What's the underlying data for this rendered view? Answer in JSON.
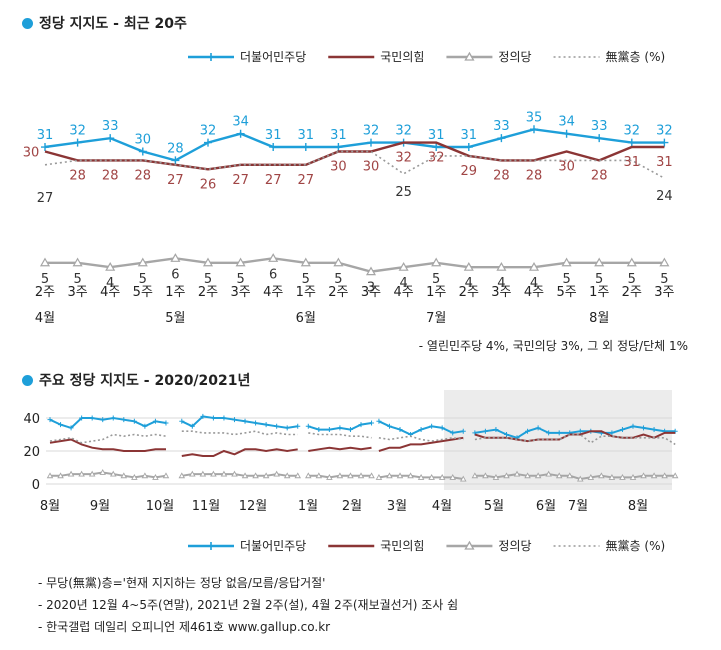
{
  "chart1": {
    "title": "정당 지지도 - 최근 20주",
    "footnote": "- 열린민주당 4%, 국민의당 3%, 그 외 정당/단체 1%",
    "legend": [
      {
        "name": "더불어민주당",
        "color": "#1e9fd9",
        "style": "marker-plus"
      },
      {
        "name": "국민의힘",
        "color": "#8b3535",
        "style": "solid"
      },
      {
        "name": "정의당",
        "color": "#a6a6a6",
        "style": "marker-triangle"
      },
      {
        "name": "無黨층 (%)",
        "color": "#999999",
        "style": "dotted"
      }
    ],
    "week_labels": [
      "2주",
      "3주",
      "4주",
      "5주",
      "1주",
      "2주",
      "3주",
      "4주",
      "1주",
      "2주",
      "3주",
      "4주",
      "1주",
      "2주",
      "3주",
      "4주",
      "5주",
      "1주",
      "2주",
      "3주"
    ],
    "month_labels": [
      {
        "label": "4월",
        "index": 0
      },
      {
        "label": "5월",
        "index": 4
      },
      {
        "label": "6월",
        "index": 8
      },
      {
        "label": "7월",
        "index": 12
      },
      {
        "label": "8월",
        "index": 17
      }
    ]
  },
  "chart2": {
    "title": "주요 정당 지지도 - 2020/2021년",
    "y_ticks": [
      "0",
      "20",
      "40"
    ],
    "month_labels": [
      "8월",
      "9월",
      "10월",
      "11월",
      "12월",
      "1월",
      "2월",
      "3월",
      "4월",
      "5월",
      "6월",
      "7월",
      "8월"
    ],
    "legend": [
      {
        "name": "더불어민주당",
        "color": "#1e9fd9",
        "style": "marker-plus"
      },
      {
        "name": "국민의힘",
        "color": "#8b3535",
        "style": "solid"
      },
      {
        "name": "정의당",
        "color": "#a6a6a6",
        "style": "marker-triangle"
      },
      {
        "name": "無黨층 (%)",
        "color": "#999999",
        "style": "dotted"
      }
    ]
  },
  "notes": [
    "- 무당(無黨)층='현재 지지하는 정당 없음/모름/응답거절'",
    "- 2020년 12월 4~5주(연말), 2021년 2월 2주(설), 4월 2주(재보궐선거) 조사 쉼",
    "- 한국갤럽 데일리 오피니언 제461호 www.gallup.co.kr"
  ],
  "chart_data": [
    {
      "type": "line",
      "title": "정당 지지도 - 최근 20주",
      "categories": [
        "4월 2주",
        "4월 3주",
        "4월 4주",
        "4월 5주",
        "5월 1주",
        "5월 2주",
        "5월 3주",
        "5월 4주",
        "6월 1주",
        "6월 2주",
        "6월 3주",
        "6월 4주",
        "7월 1주",
        "7월 2주",
        "7월 3주",
        "7월 4주",
        "7월 5주",
        "8월 1주",
        "8월 2주",
        "8월 3주"
      ],
      "series": [
        {
          "name": "더불어민주당",
          "color": "#1e9fd9",
          "values": [
            31,
            32,
            33,
            30,
            28,
            32,
            34,
            31,
            31,
            31,
            32,
            32,
            31,
            31,
            33,
            35,
            34,
            33,
            32,
            32
          ]
        },
        {
          "name": "국민의힘",
          "color": "#8b3535",
          "values": [
            30,
            28,
            28,
            28,
            27,
            26,
            27,
            27,
            27,
            30,
            30,
            32,
            32,
            29,
            28,
            28,
            30,
            28,
            31,
            31
          ]
        },
        {
          "name": "정의당",
          "color": "#a6a6a6",
          "values": [
            5,
            5,
            4,
            5,
            6,
            5,
            5,
            6,
            5,
            5,
            3,
            4,
            5,
            4,
            4,
            4,
            5,
            5,
            5,
            5
          ]
        },
        {
          "name": "無黨층 (%)",
          "color": "#999999",
          "values": [
            27,
            28,
            28,
            28,
            27,
            26,
            27,
            27,
            27,
            30,
            30,
            25,
            29,
            29,
            28,
            28,
            28,
            28,
            28,
            24
          ]
        }
      ],
      "legend_position": "top",
      "grid": false
    },
    {
      "type": "line",
      "title": "주요 정당 지지도 - 2020/2021년",
      "x_labels": [
        "8월",
        "9월",
        "10월",
        "11월",
        "12월",
        "1월",
        "2월",
        "3월",
        "4월",
        "5월",
        "6월",
        "7월",
        "8월"
      ],
      "ylim": [
        0,
        40
      ],
      "y_ticks": [
        0,
        20,
        40
      ],
      "grid": true,
      "legend_position": "bottom",
      "highlight_range": "최근 20주 (4월 2주 ~ 8월 3주)",
      "segments": [
        {
          "months": "2020년 8월~9월",
          "series": [
            {
              "name": "더불어민주당",
              "values": [
                39,
                36,
                34,
                40,
                40,
                39,
                40,
                39,
                38,
                35,
                38,
                37
              ]
            },
            {
              "name": "국민의힘",
              "values": [
                25,
                26,
                27,
                24,
                22,
                21,
                21,
                20,
                20,
                20,
                21,
                21
              ]
            },
            {
              "name": "정의당",
              "values": [
                5,
                5,
                6,
                6,
                6,
                7,
                6,
                5,
                4,
                5,
                4,
                5
              ]
            },
            {
              "name": "無黨층 (%)",
              "values": [
                26,
                27,
                28,
                25,
                26,
                27,
                30,
                29,
                30,
                29,
                30,
                29
              ]
            }
          ]
        },
        {
          "months": "2020년 10월~12월 3주",
          "series": [
            {
              "name": "더불어민주당",
              "values": [
                38,
                35,
                41,
                40,
                40,
                39,
                38,
                37,
                36,
                35,
                34,
                35
              ]
            },
            {
              "name": "국민의힘",
              "values": [
                17,
                18,
                17,
                17,
                20,
                18,
                21,
                21,
                20,
                21,
                20,
                21
              ]
            },
            {
              "name": "정의당",
              "values": [
                5,
                6,
                6,
                6,
                6,
                6,
                5,
                5,
                5,
                6,
                5,
                5
              ]
            },
            {
              "name": "無黨층 (%)",
              "values": [
                32,
                32,
                31,
                31,
                31,
                30,
                31,
                32,
                30,
                31,
                30,
                30
              ]
            }
          ]
        },
        {
          "months": "2021년 1월~2월 1주",
          "series": [
            {
              "name": "더불어민주당",
              "values": [
                35,
                33,
                33,
                34,
                33,
                36,
                37
              ]
            },
            {
              "name": "국민의힘",
              "values": [
                20,
                21,
                22,
                21,
                22,
                21,
                22
              ]
            },
            {
              "name": "정의당",
              "values": [
                5,
                5,
                4,
                5,
                5,
                5,
                5
              ]
            },
            {
              "name": "無黨층 (%)",
              "values": [
                31,
                30,
                30,
                30,
                29,
                29,
                28
              ]
            }
          ]
        },
        {
          "months": "2021년 2월 3주~4월 1주",
          "series": [
            {
              "name": "더불어민주당",
              "values": [
                38,
                35,
                33,
                30,
                33,
                35,
                34,
                31,
                32
              ]
            },
            {
              "name": "국민의힘",
              "values": [
                20,
                22,
                22,
                24,
                24,
                25,
                26,
                27,
                28
              ]
            },
            {
              "name": "정의당",
              "values": [
                4,
                5,
                5,
                5,
                4,
                4,
                4,
                4,
                3
              ]
            },
            {
              "name": "無黨층 (%)",
              "values": [
                28,
                27,
                28,
                29,
                27,
                26,
                27,
                28,
                27
              ]
            }
          ]
        },
        {
          "months": "2021년 4월 2주~8월 3주",
          "series": [
            {
              "name": "더불어민주당",
              "values": [
                31,
                32,
                33,
                30,
                28,
                32,
                34,
                31,
                31,
                31,
                32,
                32,
                31,
                31,
                33,
                35,
                34,
                33,
                32,
                32
              ]
            },
            {
              "name": "국민의힘",
              "values": [
                30,
                28,
                28,
                28,
                27,
                26,
                27,
                27,
                27,
                30,
                30,
                32,
                32,
                29,
                28,
                28,
                30,
                28,
                31,
                31
              ]
            },
            {
              "name": "정의당",
              "values": [
                5,
                5,
                4,
                5,
                6,
                5,
                5,
                6,
                5,
                5,
                3,
                4,
                5,
                4,
                4,
                4,
                5,
                5,
                5,
                5
              ]
            },
            {
              "name": "無黨층 (%)",
              "values": [
                27,
                28,
                28,
                28,
                27,
                26,
                27,
                27,
                27,
                30,
                30,
                25,
                29,
                29,
                28,
                28,
                28,
                28,
                28,
                24
              ]
            }
          ]
        }
      ]
    }
  ]
}
